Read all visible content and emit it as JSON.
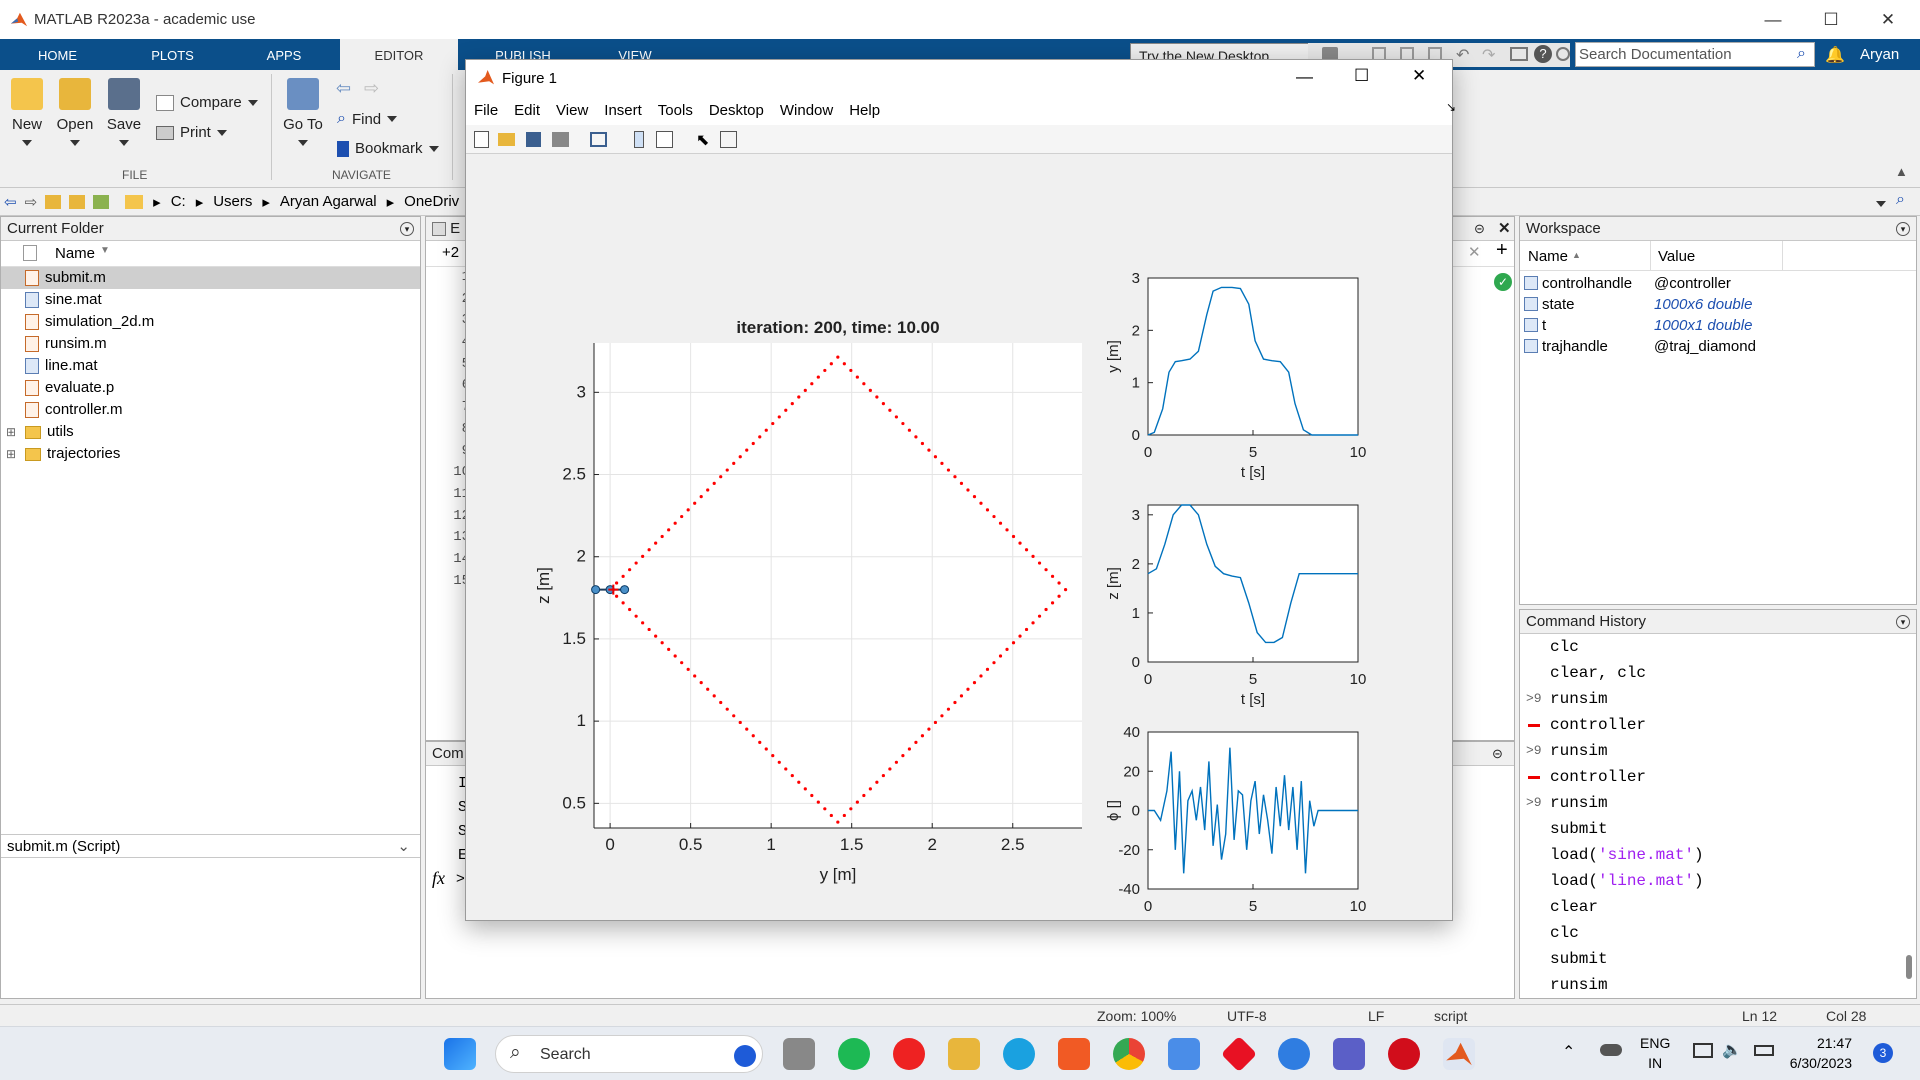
{
  "app": {
    "title": "MATLAB R2023a - academic use"
  },
  "tabs": [
    "HOME",
    "PLOTS",
    "APPS",
    "EDITOR",
    "PUBLISH",
    "VIEW"
  ],
  "toolstrip": {
    "new": "New",
    "open": "Open",
    "save": "Save",
    "compare": "Compare",
    "print": "Print",
    "goto": "Go To",
    "find": "Find",
    "bookmark": "Bookmark",
    "file_section": "FILE",
    "navigate_section": "NAVIGATE",
    "try_desktop": "Try the New Desktop",
    "search_placeholder": "Search Documentation",
    "user": "Aryan"
  },
  "address": {
    "parts": [
      "C:",
      "Users",
      "Aryan Agarwal",
      "OneDriv"
    ]
  },
  "current_folder": {
    "title": "Current Folder",
    "column": "Name",
    "files": [
      {
        "name": "submit.m",
        "kind": "m",
        "selected": true
      },
      {
        "name": "sine.mat",
        "kind": "mat"
      },
      {
        "name": "simulation_2d.m",
        "kind": "m"
      },
      {
        "name": "runsim.m",
        "kind": "m"
      },
      {
        "name": "line.mat",
        "kind": "mat"
      },
      {
        "name": "evaluate.p",
        "kind": "m"
      },
      {
        "name": "controller.m",
        "kind": "m"
      },
      {
        "name": "utils",
        "kind": "folder"
      },
      {
        "name": "trajectories",
        "kind": "folder"
      }
    ],
    "details": "submit.m  (Script)"
  },
  "editor": {
    "title_partial": "E",
    "tab_partial": "+2",
    "line_numbers": [
      "1",
      "2",
      "3",
      "4",
      "5",
      "6",
      "7",
      "8",
      "9",
      "10",
      "11",
      "12",
      "13",
      "14",
      "15"
    ]
  },
  "command_window": {
    "title_partial": "Com",
    "lines_partial": [
      "I",
      "S",
      "S",
      "E"
    ]
  },
  "workspace": {
    "title": "Workspace",
    "col_name": "Name",
    "col_value": "Value",
    "vars": [
      {
        "name": "controlhandle",
        "value": "@controller",
        "italic": false
      },
      {
        "name": "state",
        "value": "1000x6 double",
        "italic": true
      },
      {
        "name": "t",
        "value": "1000x1 double",
        "italic": true
      },
      {
        "name": "trajhandle",
        "value": "@traj_diamond",
        "italic": false
      }
    ]
  },
  "command_history": {
    "title": "Command History",
    "items": [
      {
        "text": "clc",
        "mark": ""
      },
      {
        "text": "clear, clc",
        "mark": ""
      },
      {
        "text": "runsim",
        "mark": ">9"
      },
      {
        "text": "controller",
        "mark": "red"
      },
      {
        "text": "runsim",
        "mark": ">9"
      },
      {
        "text": "controller",
        "mark": "red"
      },
      {
        "text": "runsim",
        "mark": ">9"
      },
      {
        "text": "submit",
        "mark": ""
      },
      {
        "text": "load('sine.mat')",
        "mark": ""
      },
      {
        "text": "load('line.mat')",
        "mark": ""
      },
      {
        "text": "clear",
        "mark": ""
      },
      {
        "text": "clc",
        "mark": ""
      },
      {
        "text": "submit",
        "mark": ""
      },
      {
        "text": "runsim",
        "mark": ""
      }
    ]
  },
  "statusbar": {
    "zoom": "Zoom: 100%",
    "encoding": "UTF-8",
    "eol": "LF",
    "type": "script",
    "ln": "Ln  12",
    "col": "Col  28"
  },
  "figure": {
    "title": "Figure 1",
    "menu": [
      "File",
      "Edit",
      "View",
      "Insert",
      "Tools",
      "Desktop",
      "Window",
      "Help"
    ]
  },
  "taskbar": {
    "search": "Search",
    "lang1": "ENG",
    "lang2": "IN",
    "time": "21:47",
    "date": "6/30/2023",
    "badge": "3"
  },
  "chart_data": [
    {
      "type": "scatter",
      "title": "iteration: 200, time: 10.00",
      "xlabel": "y [m]",
      "ylabel": "z [m]",
      "xlim": [
        -0.1,
        2.93
      ],
      "ylim": [
        0.35,
        3.3
      ],
      "xticks": [
        "0",
        "0.5",
        "1",
        "1.5",
        "2",
        "2.5"
      ],
      "yticks": [
        "0.5",
        "1",
        "1.5",
        "2",
        "2.5",
        "3"
      ],
      "grid": true,
      "series": [
        {
          "color": "#ff0000",
          "points": [
            [
              0,
              1.8
            ],
            [
              1.414,
              3.214
            ],
            [
              2.828,
              1.8
            ],
            [
              1.414,
              0.386
            ],
            [
              0,
              1.8
            ]
          ],
          "points_per_side": 35
        },
        {
          "color": "#0b5fa5",
          "quad": [
            [
              -0.09,
              1.8
            ],
            [
              0.09,
              1.8
            ]
          ]
        }
      ]
    },
    {
      "type": "line",
      "xlabel": "t [s]",
      "ylabel": "y [m]",
      "xlim": [
        0,
        10
      ],
      "ylim": [
        0,
        3
      ],
      "xticks": [
        "0",
        "5",
        "10"
      ],
      "yticks": [
        "0",
        "1",
        "2",
        "3"
      ],
      "x": [
        0,
        0.3,
        0.7,
        1,
        1.3,
        1.6,
        2,
        2.4,
        2.8,
        3.1,
        3.5,
        4,
        4.4,
        4.8,
        5.1,
        5.5,
        5.9,
        6.3,
        6.7,
        7,
        7.4,
        7.8,
        8,
        10
      ],
      "values": [
        0,
        0.05,
        0.5,
        1.2,
        1.4,
        1.42,
        1.45,
        1.6,
        2.3,
        2.75,
        2.82,
        2.82,
        2.8,
        2.5,
        1.8,
        1.45,
        1.42,
        1.4,
        1.2,
        0.6,
        0.1,
        0,
        0,
        0
      ]
    },
    {
      "type": "line",
      "xlabel": "t [s]",
      "ylabel": "z [m]",
      "xlim": [
        0,
        10
      ],
      "ylim": [
        0,
        3.2
      ],
      "xticks": [
        "0",
        "5",
        "10"
      ],
      "yticks": [
        "0",
        "1",
        "2",
        "3"
      ],
      "x": [
        0,
        0.4,
        0.8,
        1.2,
        1.6,
        2,
        2.4,
        2.8,
        3.2,
        3.6,
        4,
        4.4,
        4.8,
        5.2,
        5.6,
        6,
        6.4,
        6.8,
        7.2,
        7.6,
        8,
        8.5,
        10
      ],
      "values": [
        1.8,
        1.9,
        2.4,
        3,
        3.2,
        3.2,
        3,
        2.4,
        1.95,
        1.8,
        1.75,
        1.72,
        1.2,
        0.6,
        0.4,
        0.4,
        0.5,
        1.2,
        1.8,
        1.8,
        1.8,
        1.8,
        1.8
      ]
    },
    {
      "type": "line",
      "xlabel": "t [s]",
      "ylabel": "ϕ []",
      "xlim": [
        0,
        10
      ],
      "ylim": [
        -40,
        40
      ],
      "xticks": [
        "0",
        "5",
        "10"
      ],
      "yticks": [
        "-40",
        "-20",
        "0",
        "20",
        "40"
      ],
      "x": [
        0,
        0.3,
        0.6,
        0.9,
        1.1,
        1.3,
        1.5,
        1.7,
        1.9,
        2.1,
        2.3,
        2.5,
        2.7,
        2.9,
        3.1,
        3.3,
        3.5,
        3.7,
        3.9,
        4.1,
        4.3,
        4.5,
        4.7,
        4.9,
        5.1,
        5.3,
        5.5,
        5.7,
        5.9,
        6.1,
        6.3,
        6.5,
        6.7,
        6.9,
        7.1,
        7.3,
        7.5,
        7.7,
        7.9,
        8.1,
        8.4,
        10
      ],
      "values": [
        0,
        0,
        -5,
        10,
        30,
        -20,
        20,
        -32,
        5,
        10,
        -5,
        12,
        -10,
        25,
        -18,
        3,
        -25,
        -12,
        32,
        -15,
        10,
        8,
        -20,
        5,
        15,
        -12,
        8,
        -5,
        -22,
        12,
        -8,
        18,
        -10,
        12,
        -20,
        15,
        -32,
        5,
        -8,
        0,
        0,
        0
      ]
    }
  ]
}
